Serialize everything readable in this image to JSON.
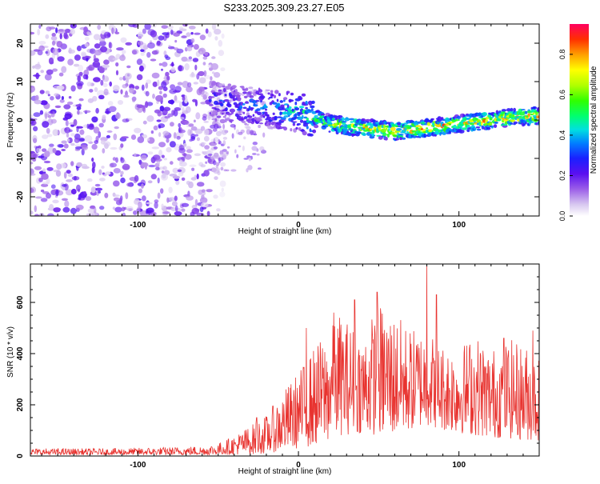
{
  "title": "S233.2025.309.23.27.E05",
  "chart_data": [
    {
      "type": "heatmap",
      "title": "S233.2025.309.23.27.E05",
      "xlabel": "Height of straight line (km)",
      "ylabel": "Frequency (Hz)",
      "xlim": [
        -167,
        150
      ],
      "ylim": [
        -25,
        25
      ],
      "xticks": [
        -100,
        0,
        100
      ],
      "yticks": [
        -20,
        -10,
        0,
        10,
        20
      ],
      "colorbar": {
        "label": "Normalized spectral amplitude",
        "range": [
          0,
          0.95
        ],
        "ticks": [
          0.0,
          0.2,
          0.4,
          0.6,
          0.8
        ],
        "tick_labels": [
          "0.0",
          "0.2",
          "0.4",
          "0.6",
          "0.8"
        ]
      },
      "ridge": {
        "x": [
          -55,
          -40,
          -20,
          0,
          20,
          40,
          60,
          80,
          100,
          120,
          140,
          150
        ],
        "frequency": [
          5,
          4,
          3,
          2,
          -1,
          -2,
          -3,
          -2,
          -1,
          0,
          1,
          1
        ],
        "typical_amplitude": [
          0.3,
          0.35,
          0.4,
          0.5,
          0.7,
          0.8,
          0.85,
          0.9,
          0.8,
          0.8,
          0.85,
          0.8
        ]
      },
      "noise_region": {
        "x_range": [
          -167,
          -55
        ],
        "frequency_range": [
          -25,
          25
        ],
        "typical_amplitude": 0.1
      }
    },
    {
      "type": "line",
      "xlabel": "Height of straight line (km)",
      "ylabel": "SNR (10 * v/v)",
      "xlim": [
        -167,
        150
      ],
      "ylim": [
        0,
        750
      ],
      "xticks": [
        -100,
        0,
        100
      ],
      "yticks": [
        0,
        200,
        400,
        600
      ],
      "series": [
        {
          "name": "SNR",
          "color": "#e8332f",
          "envelope_x": [
            -167,
            -120,
            -80,
            -60,
            -50,
            -40,
            -30,
            -20,
            -10,
            0,
            10,
            20,
            25,
            40,
            50,
            60,
            70,
            80,
            90,
            100,
            110,
            120,
            130,
            140,
            150
          ],
          "envelope_low": [
            5,
            5,
            5,
            5,
            5,
            5,
            5,
            10,
            20,
            30,
            40,
            60,
            80,
            90,
            80,
            80,
            100,
            120,
            100,
            90,
            80,
            70,
            70,
            60,
            60
          ],
          "envelope_high": [
            30,
            30,
            35,
            40,
            50,
            80,
            120,
            160,
            250,
            330,
            430,
            500,
            560,
            480,
            600,
            560,
            500,
            500,
            440,
            430,
            480,
            420,
            460,
            440,
            400
          ],
          "peaks": [
            [
              -26,
              150
            ],
            [
              5,
              500
            ],
            [
              22,
              560
            ],
            [
              35,
              610
            ],
            [
              49,
              640
            ],
            [
              80,
              745
            ],
            [
              86,
              630
            ],
            [
              128,
              460
            ],
            [
              146,
              490
            ]
          ]
        }
      ]
    }
  ]
}
